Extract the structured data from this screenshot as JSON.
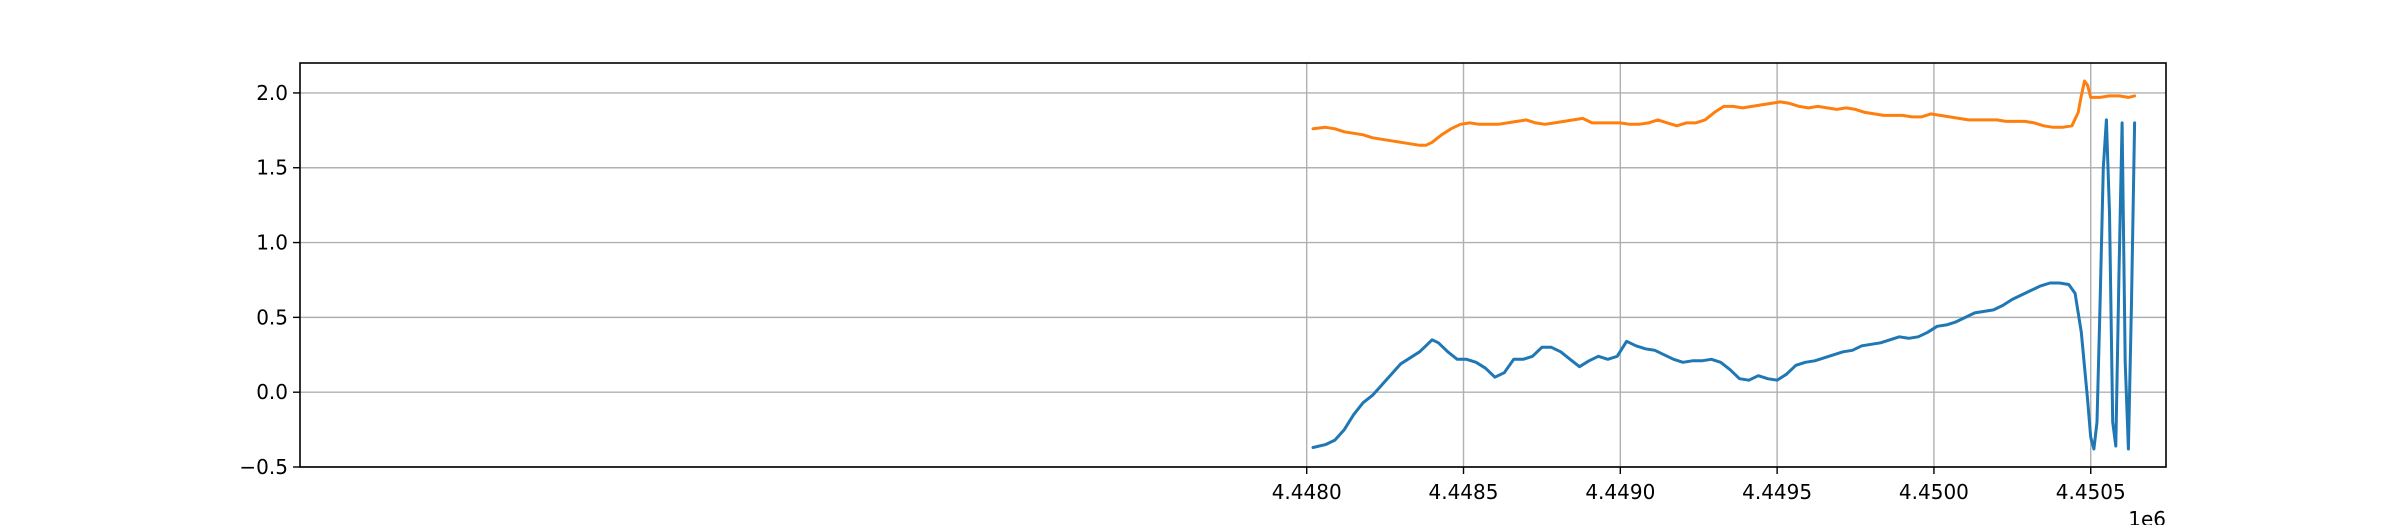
{
  "chart_data": {
    "type": "line",
    "title": "",
    "xlabel": "",
    "ylabel": "",
    "x_offset_label": "1e6",
    "xlim": [
      4.44479,
      4.45074
    ],
    "ylim": [
      -0.5,
      2.2
    ],
    "x_ticks": [
      4.448,
      4.4485,
      4.449,
      4.4495,
      4.45,
      4.4505
    ],
    "x_tick_labels": [
      "4.4480",
      "4.4485",
      "4.4490",
      "4.4495",
      "4.4500",
      "4.4505"
    ],
    "y_ticks": [
      -0.5,
      0.0,
      0.5,
      1.0,
      1.5,
      2.0
    ],
    "y_tick_labels": [
      "−0.5",
      "0.0",
      "0.5",
      "1.0",
      "1.5",
      "2.0"
    ],
    "grid": true,
    "x_scale_factor": 1000000,
    "series": [
      {
        "color": "#1f77b4",
        "points": [
          [
            4.44802,
            -0.37
          ],
          [
            4.44806,
            -0.35
          ],
          [
            4.44809,
            -0.32
          ],
          [
            4.44812,
            -0.25
          ],
          [
            4.44815,
            -0.15
          ],
          [
            4.44818,
            -0.07
          ],
          [
            4.44821,
            -0.02
          ],
          [
            4.44824,
            0.05
          ],
          [
            4.44827,
            0.12
          ],
          [
            4.4483,
            0.19
          ],
          [
            4.44833,
            0.23
          ],
          [
            4.44836,
            0.27
          ],
          [
            4.44838,
            0.31
          ],
          [
            4.4484,
            0.35
          ],
          [
            4.44842,
            0.33
          ],
          [
            4.44845,
            0.27
          ],
          [
            4.44848,
            0.22
          ],
          [
            4.44851,
            0.22
          ],
          [
            4.44854,
            0.2
          ],
          [
            4.44857,
            0.16
          ],
          [
            4.4486,
            0.1
          ],
          [
            4.44863,
            0.13
          ],
          [
            4.44866,
            0.22
          ],
          [
            4.44869,
            0.22
          ],
          [
            4.44872,
            0.24
          ],
          [
            4.44875,
            0.3
          ],
          [
            4.44878,
            0.3
          ],
          [
            4.44881,
            0.27
          ],
          [
            4.44884,
            0.22
          ],
          [
            4.44887,
            0.17
          ],
          [
            4.4489,
            0.21
          ],
          [
            4.44893,
            0.24
          ],
          [
            4.44896,
            0.22
          ],
          [
            4.44899,
            0.24
          ],
          [
            4.44902,
            0.34
          ],
          [
            4.44905,
            0.31
          ],
          [
            4.44908,
            0.29
          ],
          [
            4.44911,
            0.28
          ],
          [
            4.44914,
            0.25
          ],
          [
            4.44917,
            0.22
          ],
          [
            4.4492,
            0.2
          ],
          [
            4.44923,
            0.21
          ],
          [
            4.44926,
            0.21
          ],
          [
            4.44929,
            0.22
          ],
          [
            4.44932,
            0.2
          ],
          [
            4.44935,
            0.15
          ],
          [
            4.44938,
            0.09
          ],
          [
            4.44941,
            0.08
          ],
          [
            4.44944,
            0.11
          ],
          [
            4.44947,
            0.09
          ],
          [
            4.4495,
            0.08
          ],
          [
            4.44953,
            0.12
          ],
          [
            4.44956,
            0.18
          ],
          [
            4.44959,
            0.2
          ],
          [
            4.44962,
            0.21
          ],
          [
            4.44965,
            0.23
          ],
          [
            4.44968,
            0.25
          ],
          [
            4.44971,
            0.27
          ],
          [
            4.44974,
            0.28
          ],
          [
            4.44977,
            0.31
          ],
          [
            4.4498,
            0.32
          ],
          [
            4.44983,
            0.33
          ],
          [
            4.44986,
            0.35
          ],
          [
            4.44989,
            0.37
          ],
          [
            4.44992,
            0.36
          ],
          [
            4.44995,
            0.37
          ],
          [
            4.44998,
            0.4
          ],
          [
            4.45001,
            0.44
          ],
          [
            4.45004,
            0.45
          ],
          [
            4.45007,
            0.47
          ],
          [
            4.4501,
            0.5
          ],
          [
            4.45013,
            0.53
          ],
          [
            4.45016,
            0.54
          ],
          [
            4.45019,
            0.55
          ],
          [
            4.45022,
            0.58
          ],
          [
            4.45025,
            0.62
          ],
          [
            4.45028,
            0.65
          ],
          [
            4.45031,
            0.68
          ],
          [
            4.45034,
            0.71
          ],
          [
            4.45037,
            0.73
          ],
          [
            4.4504,
            0.73
          ],
          [
            4.45043,
            0.72
          ],
          [
            4.45045,
            0.66
          ],
          [
            4.45047,
            0.4
          ],
          [
            4.45049,
            -0.05
          ],
          [
            4.4505,
            -0.3
          ],
          [
            4.45051,
            -0.38
          ],
          [
            4.45052,
            -0.2
          ],
          [
            4.45053,
            0.6
          ],
          [
            4.45054,
            1.5
          ],
          [
            4.45055,
            1.82
          ],
          [
            4.45056,
            1.2
          ],
          [
            4.45057,
            -0.2
          ],
          [
            4.45058,
            -0.36
          ],
          [
            4.45059,
            0.8
          ],
          [
            4.4506,
            1.8
          ],
          [
            4.45061,
            0.2
          ],
          [
            4.45062,
            -0.38
          ],
          [
            4.45063,
            0.6
          ],
          [
            4.45064,
            1.8
          ]
        ]
      },
      {
        "color": "#ff7f0e",
        "points": [
          [
            4.44802,
            1.76
          ],
          [
            4.44806,
            1.77
          ],
          [
            4.44809,
            1.76
          ],
          [
            4.44812,
            1.74
          ],
          [
            4.44815,
            1.73
          ],
          [
            4.44818,
            1.72
          ],
          [
            4.44821,
            1.7
          ],
          [
            4.44824,
            1.69
          ],
          [
            4.44827,
            1.68
          ],
          [
            4.4483,
            1.67
          ],
          [
            4.44833,
            1.66
          ],
          [
            4.44836,
            1.65
          ],
          [
            4.44838,
            1.65
          ],
          [
            4.4484,
            1.67
          ],
          [
            4.44843,
            1.72
          ],
          [
            4.44846,
            1.76
          ],
          [
            4.44849,
            1.79
          ],
          [
            4.44852,
            1.8
          ],
          [
            4.44855,
            1.79
          ],
          [
            4.44858,
            1.79
          ],
          [
            4.44861,
            1.79
          ],
          [
            4.44864,
            1.8
          ],
          [
            4.44867,
            1.81
          ],
          [
            4.4487,
            1.82
          ],
          [
            4.44873,
            1.8
          ],
          [
            4.44876,
            1.79
          ],
          [
            4.44879,
            1.8
          ],
          [
            4.44882,
            1.81
          ],
          [
            4.44885,
            1.82
          ],
          [
            4.44888,
            1.83
          ],
          [
            4.44891,
            1.8
          ],
          [
            4.44894,
            1.8
          ],
          [
            4.44897,
            1.8
          ],
          [
            4.449,
            1.8
          ],
          [
            4.44903,
            1.79
          ],
          [
            4.44906,
            1.79
          ],
          [
            4.44909,
            1.8
          ],
          [
            4.44912,
            1.82
          ],
          [
            4.44915,
            1.8
          ],
          [
            4.44918,
            1.78
          ],
          [
            4.44921,
            1.8
          ],
          [
            4.44924,
            1.8
          ],
          [
            4.44927,
            1.82
          ],
          [
            4.4493,
            1.87
          ],
          [
            4.44933,
            1.91
          ],
          [
            4.44936,
            1.91
          ],
          [
            4.44939,
            1.9
          ],
          [
            4.44942,
            1.91
          ],
          [
            4.44945,
            1.92
          ],
          [
            4.44948,
            1.93
          ],
          [
            4.44951,
            1.94
          ],
          [
            4.44954,
            1.93
          ],
          [
            4.44957,
            1.91
          ],
          [
            4.4496,
            1.9
          ],
          [
            4.44963,
            1.91
          ],
          [
            4.44966,
            1.9
          ],
          [
            4.44969,
            1.89
          ],
          [
            4.44972,
            1.9
          ],
          [
            4.44975,
            1.89
          ],
          [
            4.44978,
            1.87
          ],
          [
            4.44981,
            1.86
          ],
          [
            4.44984,
            1.85
          ],
          [
            4.44987,
            1.85
          ],
          [
            4.4499,
            1.85
          ],
          [
            4.44993,
            1.84
          ],
          [
            4.44996,
            1.84
          ],
          [
            4.44999,
            1.86
          ],
          [
            4.45002,
            1.85
          ],
          [
            4.45005,
            1.84
          ],
          [
            4.45008,
            1.83
          ],
          [
            4.45011,
            1.82
          ],
          [
            4.45014,
            1.82
          ],
          [
            4.45017,
            1.82
          ],
          [
            4.4502,
            1.82
          ],
          [
            4.45023,
            1.81
          ],
          [
            4.45026,
            1.81
          ],
          [
            4.45029,
            1.81
          ],
          [
            4.45032,
            1.8
          ],
          [
            4.45035,
            1.78
          ],
          [
            4.45038,
            1.77
          ],
          [
            4.45041,
            1.77
          ],
          [
            4.45044,
            1.78
          ],
          [
            4.45046,
            1.87
          ],
          [
            4.45047,
            1.98
          ],
          [
            4.45048,
            2.08
          ],
          [
            4.45049,
            2.05
          ],
          [
            4.4505,
            1.97
          ],
          [
            4.45053,
            1.97
          ],
          [
            4.45056,
            1.98
          ],
          [
            4.45059,
            1.98
          ],
          [
            4.45062,
            1.97
          ],
          [
            4.45064,
            1.98
          ]
        ]
      }
    ]
  }
}
